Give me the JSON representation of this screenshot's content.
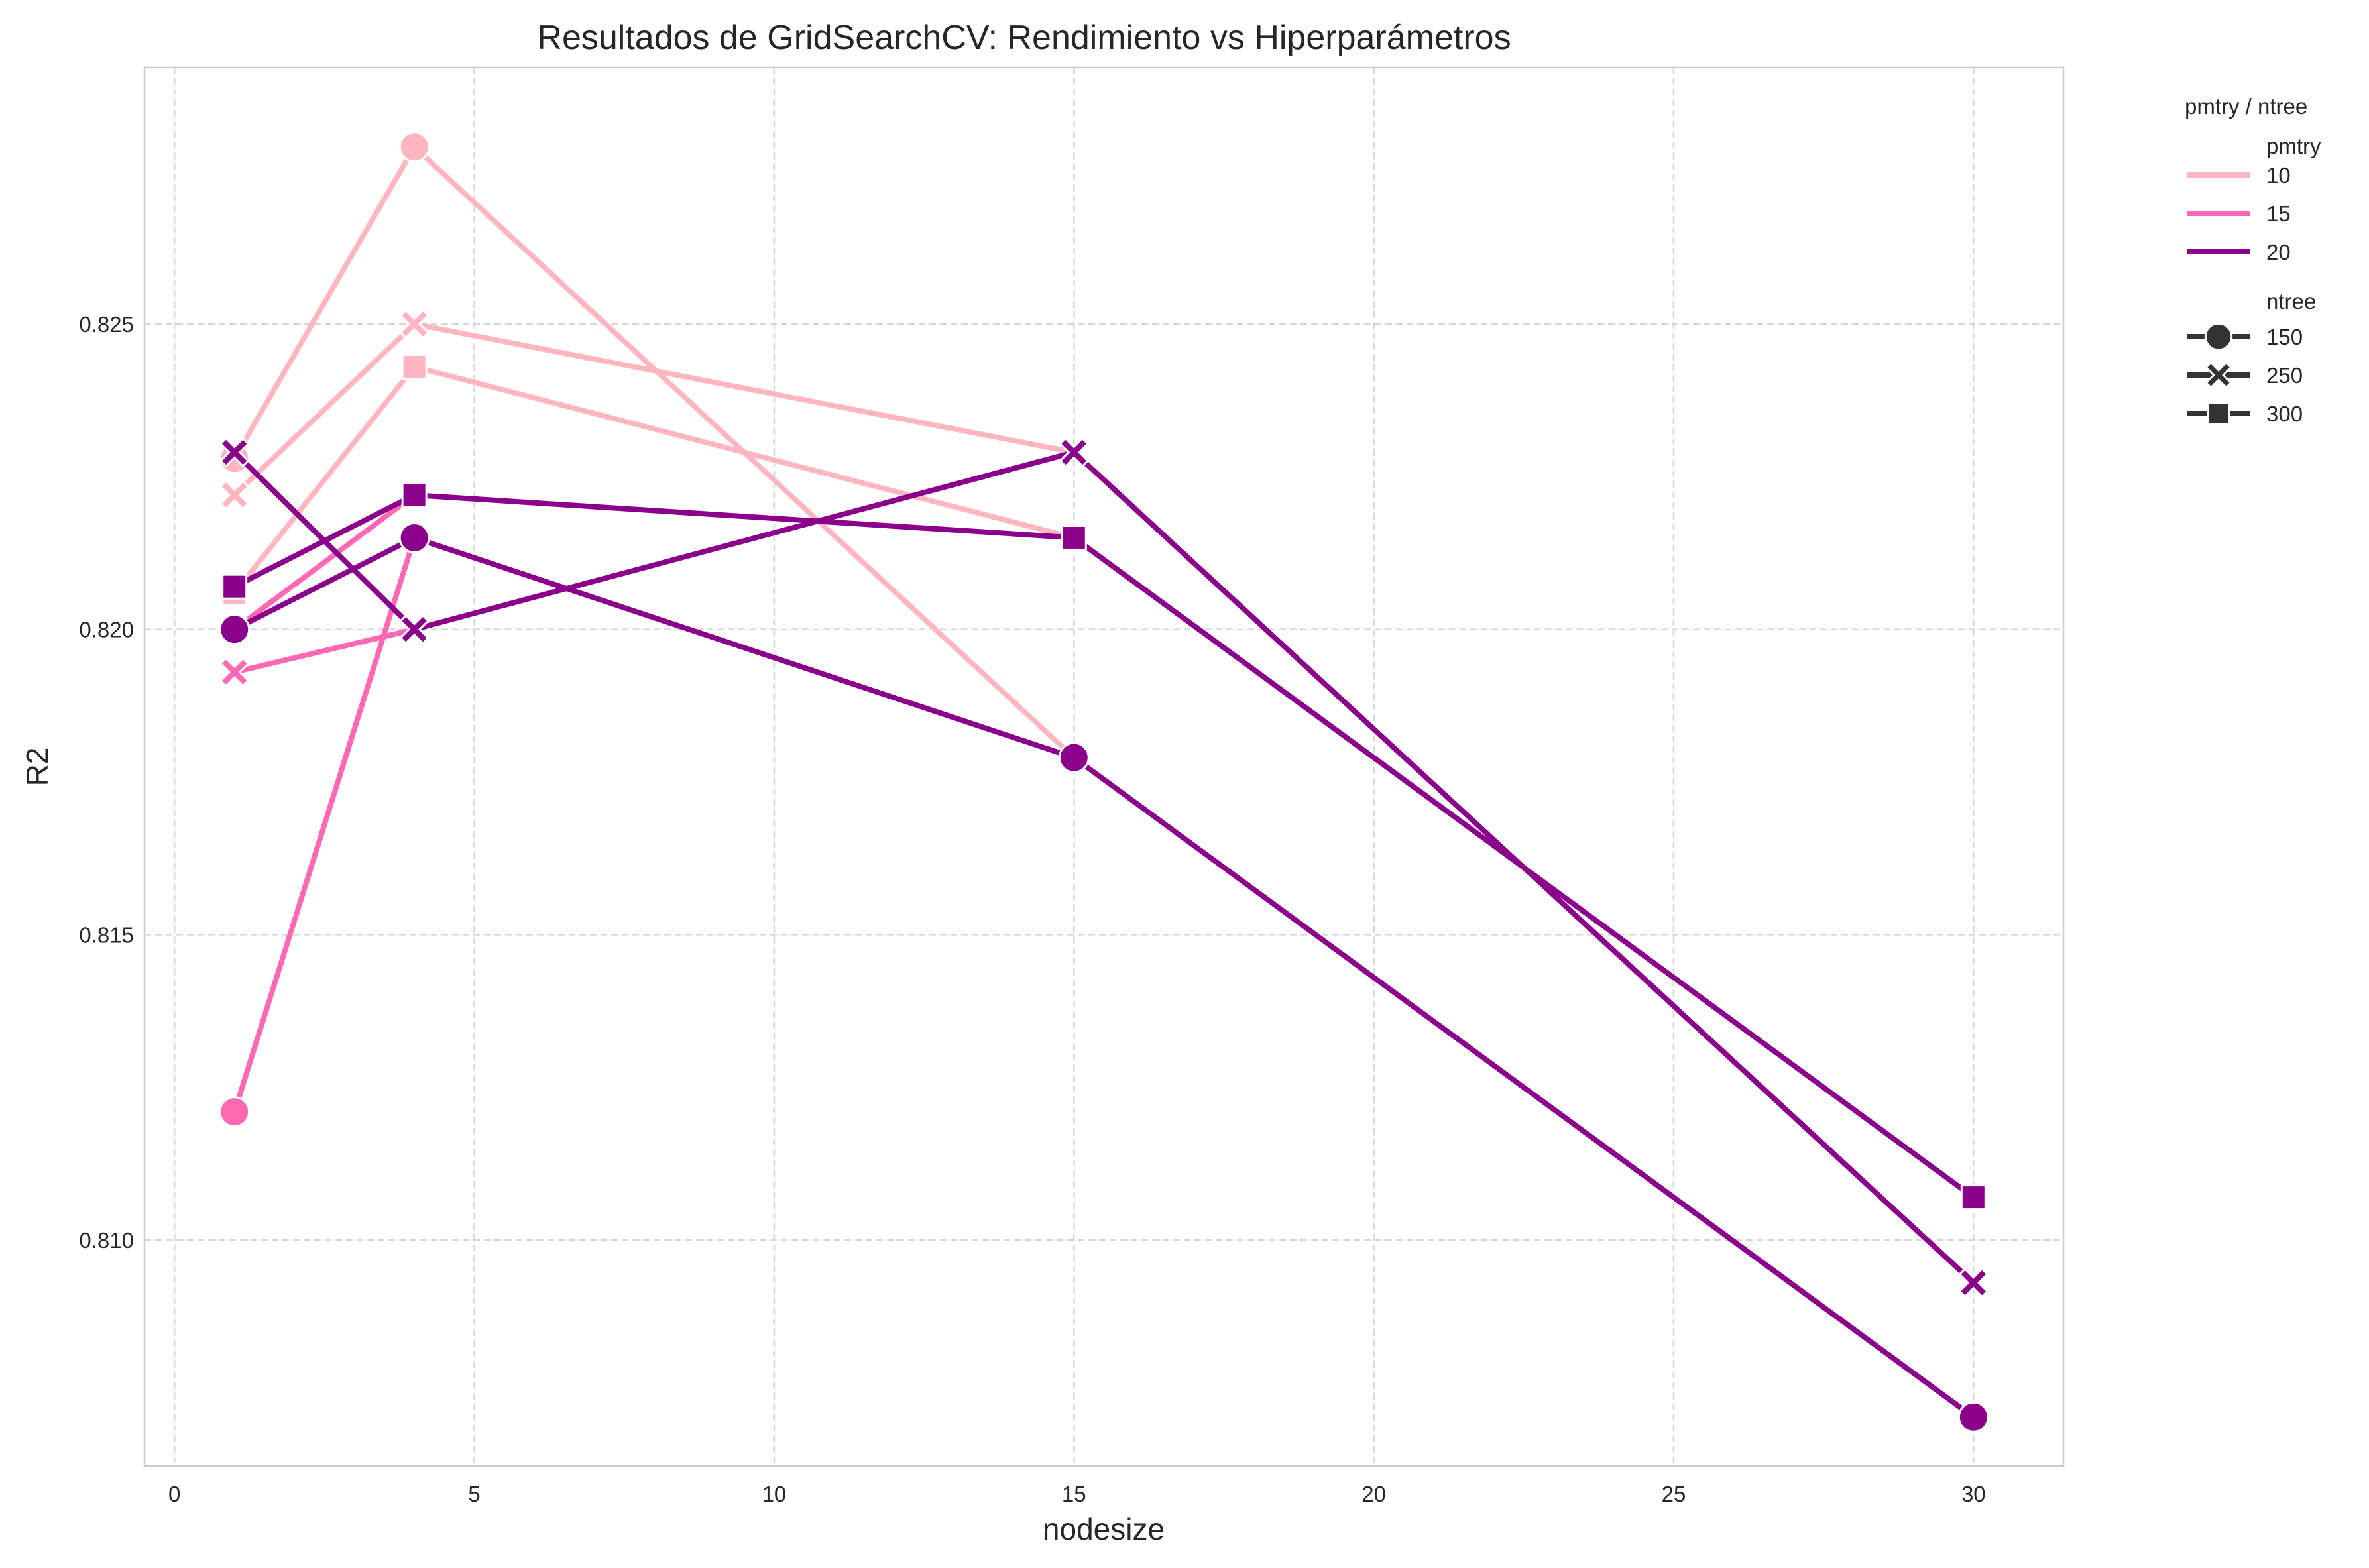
{
  "chart_data": {
    "type": "line",
    "title": "Resultados de GridSearchCV: Rendimiento vs Hiperparámetros",
    "xlabel": "nodesize",
    "ylabel": "R2",
    "xlim": [
      -0.5,
      31.5
    ],
    "ylim": [
      0.8063,
      0.8292
    ],
    "xticks": [
      0,
      5,
      10,
      15,
      20,
      25,
      30
    ],
    "yticks": [
      0.81,
      0.815,
      0.82,
      0.825
    ],
    "xtick_labels": [
      "0",
      "5",
      "10",
      "15",
      "20",
      "25",
      "30"
    ],
    "ytick_labels": [
      "0.810",
      "0.815",
      "0.820",
      "0.825"
    ],
    "grid": true,
    "legend": {
      "placement": "outside-right",
      "title": "pmtry / ntree",
      "hue_title": "pmtry",
      "style_title": "ntree",
      "hue_entries": [
        {
          "label": "10",
          "color": "#FFB6C1"
        },
        {
          "label": "15",
          "color": "#FF69B4"
        },
        {
          "label": "20",
          "color": "#8B008B"
        }
      ],
      "style_entries": [
        {
          "label": "150",
          "marker": "circle"
        },
        {
          "label": "250",
          "marker": "x"
        },
        {
          "label": "300",
          "marker": "square"
        }
      ]
    },
    "series": [
      {
        "pmtry": "10",
        "ntree": "150",
        "color": "#FFB6C1",
        "marker": "circle",
        "x": [
          1,
          4,
          15
        ],
        "y": [
          0.8228,
          0.8279,
          0.8179
        ]
      },
      {
        "pmtry": "10",
        "ntree": "250",
        "color": "#FFB6C1",
        "marker": "x",
        "x": [
          1,
          4,
          15
        ],
        "y": [
          0.8222,
          0.825,
          0.8229
        ]
      },
      {
        "pmtry": "10",
        "ntree": "300",
        "color": "#FFB6C1",
        "marker": "square",
        "x": [
          1,
          4,
          15
        ],
        "y": [
          0.8206,
          0.8243,
          0.8215
        ]
      },
      {
        "pmtry": "15",
        "ntree": "150",
        "color": "#FF69B4",
        "marker": "circle",
        "x": [
          1,
          4
        ],
        "y": [
          0.8121,
          0.8215
        ]
      },
      {
        "pmtry": "15",
        "ntree": "250",
        "color": "#FF69B4",
        "marker": "x",
        "x": [
          1,
          4
        ],
        "y": [
          0.8193,
          0.82
        ]
      },
      {
        "pmtry": "15",
        "ntree": "300",
        "color": "#FF69B4",
        "marker": "square",
        "x": [
          1,
          4
        ],
        "y": [
          0.82,
          0.8222
        ]
      },
      {
        "pmtry": "20",
        "ntree": "150",
        "color": "#8B008B",
        "marker": "circle",
        "x": [
          1,
          4,
          15,
          30
        ],
        "y": [
          0.82,
          0.8215,
          0.8179,
          0.8071
        ]
      },
      {
        "pmtry": "20",
        "ntree": "250",
        "color": "#8B008B",
        "marker": "x",
        "x": [
          1,
          4,
          15,
          30
        ],
        "y": [
          0.8229,
          0.82,
          0.8229,
          0.8093
        ]
      },
      {
        "pmtry": "20",
        "ntree": "300",
        "color": "#8B008B",
        "marker": "square",
        "x": [
          1,
          4,
          15,
          30
        ],
        "y": [
          0.8207,
          0.8222,
          0.8215,
          0.8107
        ]
      }
    ]
  }
}
